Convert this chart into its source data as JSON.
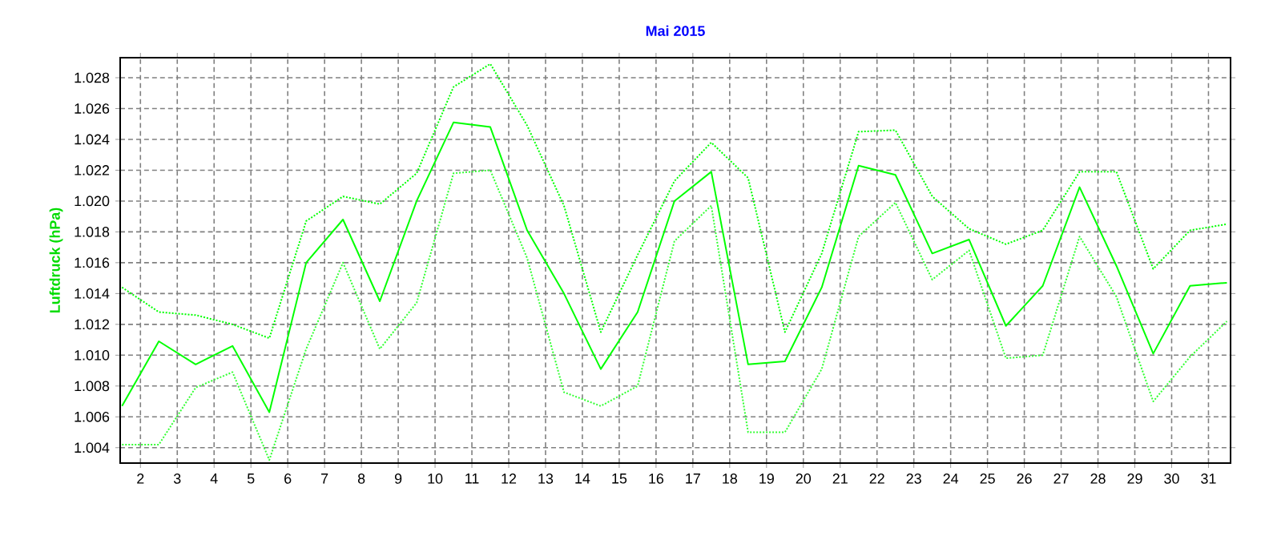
{
  "chart_data": {
    "type": "line",
    "title": "Mai 2015",
    "ylabel": "Luftdruck (hPa)",
    "x": [
      1.5,
      2.5,
      3.5,
      4.5,
      5.5,
      6.5,
      7.5,
      8.5,
      9.5,
      10.5,
      11.5,
      12.5,
      13.5,
      14.5,
      15.5,
      16.5,
      17.5,
      18.5,
      19.5,
      20.5,
      21.5,
      22.5,
      23.5,
      24.5,
      25.5,
      26.5,
      27.5,
      28.5,
      29.5,
      30.5,
      31.5
    ],
    "series": [
      {
        "color": "#00ff00",
        "line_style": "dotted",
        "values": [
          1.0144,
          1.0128,
          1.0126,
          1.012,
          1.0111,
          1.0187,
          1.0203,
          1.0198,
          1.0218,
          1.0274,
          1.0289,
          1.0249,
          1.0197,
          1.0115,
          1.0165,
          1.0213,
          1.0238,
          1.0215,
          1.0115,
          1.0166,
          1.0245,
          1.0246,
          1.0203,
          1.0182,
          1.0172,
          1.0181,
          1.0219,
          1.0219,
          1.0156,
          1.0181,
          1.0185
        ]
      },
      {
        "color": "#00ff00",
        "line_style": "solid",
        "values": [
          1.0067,
          1.0109,
          1.0094,
          1.0106,
          1.0063,
          1.016,
          1.0188,
          1.0135,
          1.02,
          1.0251,
          1.0248,
          1.0181,
          1.014,
          1.0091,
          1.0128,
          1.02,
          1.0219,
          1.0094,
          1.0096,
          1.0144,
          1.0223,
          1.0217,
          1.0166,
          1.0175,
          1.0119,
          1.0145,
          1.0209,
          1.0158,
          1.0101,
          1.0145,
          1.0147
        ]
      },
      {
        "color": "#33ff33",
        "line_style": "dotted",
        "values": [
          1.0042,
          1.0042,
          1.0079,
          1.0089,
          1.0032,
          1.0104,
          1.016,
          1.0104,
          1.0134,
          1.0218,
          1.022,
          1.0163,
          1.0076,
          1.0067,
          1.008,
          1.0174,
          1.0197,
          1.005,
          1.005,
          1.0091,
          1.0177,
          1.0199,
          1.0149,
          1.0168,
          1.0098,
          1.01,
          1.0177,
          1.0138,
          1.007,
          1.0099,
          1.0122
        ]
      }
    ],
    "xlim": [
      1.45,
      31.6
    ],
    "ylim": [
      1.003,
      1.0293
    ],
    "xticks": [
      2,
      3,
      4,
      5,
      6,
      7,
      8,
      9,
      10,
      11,
      12,
      13,
      14,
      15,
      16,
      17,
      18,
      19,
      20,
      21,
      22,
      23,
      24,
      25,
      26,
      27,
      28,
      29,
      30,
      31
    ],
    "yticks": [
      1.004,
      1.006,
      1.008,
      {
        "value": 1.01,
        "label": "1.010"
      },
      1.012,
      1.014,
      1.016,
      1.018,
      {
        "value": 1.02,
        "label": "1.020"
      },
      1.022,
      1.024,
      1.026,
      1.028
    ],
    "grid": true
  }
}
